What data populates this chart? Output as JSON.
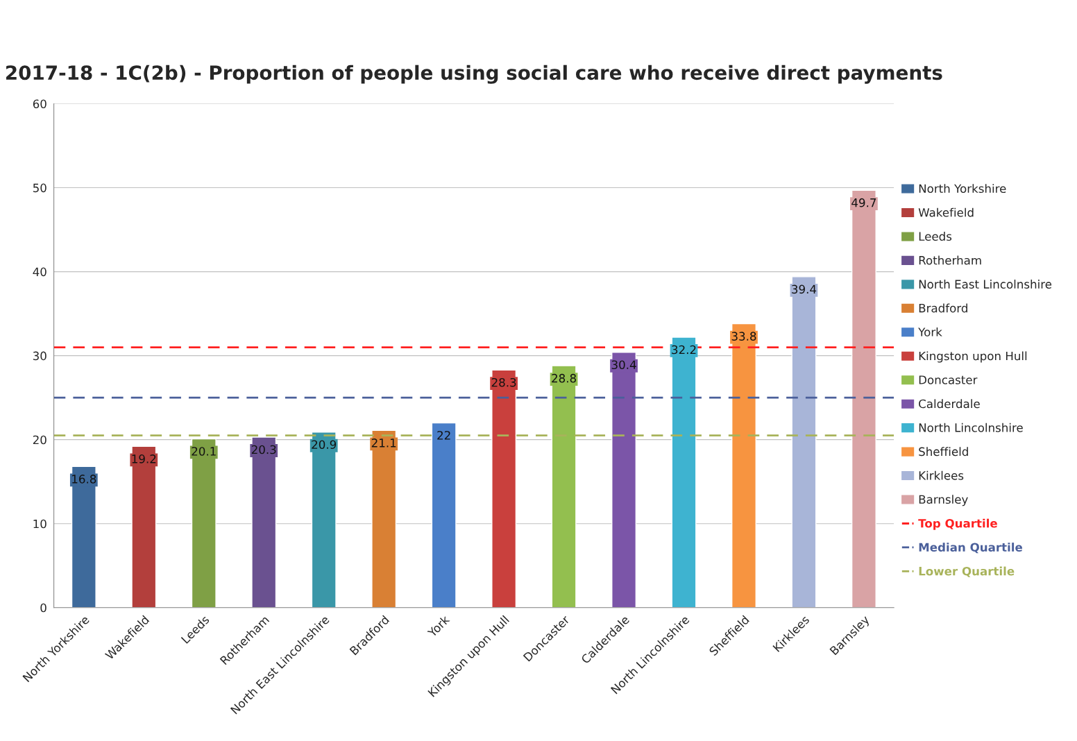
{
  "chart_data": {
    "type": "bar",
    "title": "2017-18 - 1C(2b) - Proportion of people using social care who receive direct payments",
    "categories": [
      "North Yorkshire",
      "Wakefield",
      "Leeds",
      "Rotherham",
      "North East Lincolnshire",
      "Bradford",
      "York",
      "Kingston upon Hull",
      "Doncaster",
      "Calderdale",
      "North Lincolnshire",
      "Sheffield",
      "Kirklees",
      "Barnsley"
    ],
    "values": [
      16.8,
      19.2,
      20.1,
      20.3,
      20.9,
      21.1,
      22,
      28.3,
      28.8,
      30.4,
      32.2,
      33.8,
      39.4,
      49.7
    ],
    "colors": [
      "#3e6a9b",
      "#b33f3c",
      "#7fa045",
      "#6a5190",
      "#3a97a8",
      "#d98034",
      "#4a7fc9",
      "#c9403d",
      "#93bf4f",
      "#7b55a8",
      "#3eb3d0",
      "#f79440",
      "#a8b5d8",
      "#d9a3a5"
    ],
    "ylim": [
      0,
      60
    ],
    "yticks": [
      0,
      10,
      20,
      30,
      40,
      50,
      60
    ],
    "grid": "y",
    "data_labels": true,
    "legend": "right",
    "ref_lines": [
      {
        "axis": "y",
        "value": 31,
        "label": "Top Quartile",
        "color": "#ff2020",
        "line_style": "dashed"
      },
      {
        "axis": "y",
        "value": 25,
        "label": "Median Quartile",
        "color": "#4a5f9a",
        "line_style": "dashed"
      },
      {
        "axis": "y",
        "value": 20.5,
        "label": "Lower Quartile",
        "color": "#a8b35a",
        "line_style": "dashed"
      }
    ]
  }
}
